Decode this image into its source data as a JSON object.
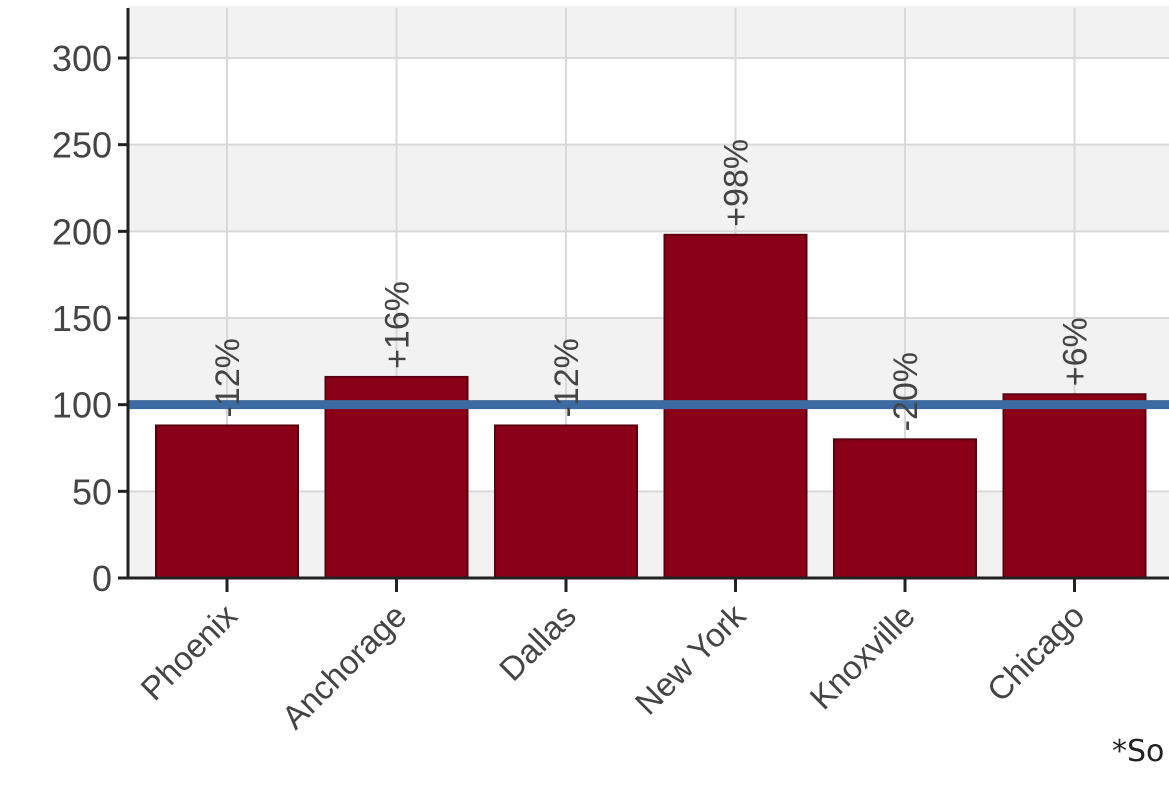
{
  "chart_data": {
    "type": "bar",
    "categories": [
      "Phoenix",
      "Anchorage",
      "Dallas",
      "New York",
      "Knoxville",
      "Chicago"
    ],
    "values": [
      88,
      116,
      88,
      198,
      80,
      106
    ],
    "data_labels": [
      "-12%",
      "+16%",
      "-12%",
      "+98%",
      "-20%",
      "+6%"
    ],
    "reference_line": 100,
    "ylim": [
      0,
      330
    ],
    "yticks": [
      0,
      50,
      100,
      150,
      200,
      250,
      300
    ],
    "grid": true,
    "colors": {
      "bar": "#8a0016",
      "reference_line": "#3d6aa0",
      "grid": "#d9d9d9",
      "band": "#f2f2f2",
      "axis": "#222222"
    }
  },
  "footnote": "*So"
}
